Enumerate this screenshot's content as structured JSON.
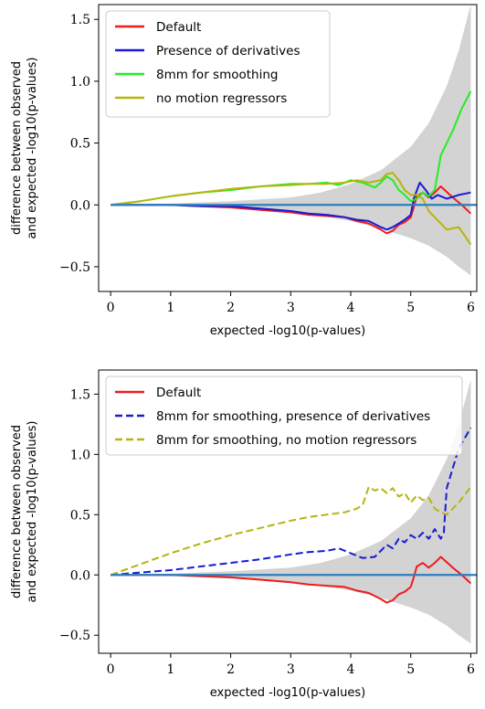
{
  "chart_data": [
    {
      "type": "line",
      "xlabel": "expected -log10(p-values)",
      "ylabel": [
        "difference between observed",
        "and expected -log10(p-values)"
      ],
      "xlim": [
        -0.2,
        6.1
      ],
      "ylim": [
        -0.7,
        1.62
      ],
      "xticks": [
        0,
        1,
        2,
        3,
        4,
        5,
        6
      ],
      "xtick_labels": [
        "0",
        "1",
        "2",
        "3",
        "4",
        "5",
        "6"
      ],
      "yticks": [
        -0.5,
        0.0,
        0.5,
        1.0,
        1.5
      ],
      "ytick_labels": [
        "−0.5",
        "0.0",
        "0.5",
        "1.0",
        "1.5"
      ],
      "grid": false,
      "legend_position": "top-left",
      "band": {
        "x": [
          0,
          1,
          2,
          3,
          3.5,
          4,
          4.5,
          5,
          5.3,
          5.6,
          5.8,
          6.0
        ],
        "upper": [
          0,
          0.01,
          0.03,
          0.06,
          0.1,
          0.17,
          0.28,
          0.47,
          0.66,
          0.96,
          1.25,
          1.62
        ],
        "lower": [
          0,
          -0.01,
          -0.03,
          -0.06,
          -0.09,
          -0.13,
          -0.19,
          -0.27,
          -0.33,
          -0.42,
          -0.5,
          -0.57
        ]
      },
      "reference_line": {
        "y": 0,
        "color": "#2e7ebc"
      },
      "series": [
        {
          "name": "Default",
          "color": "#ee1c1c",
          "style": "solid",
          "x": [
            0,
            0.5,
            1.0,
            1.5,
            2.0,
            2.5,
            3.0,
            3.3,
            3.6,
            3.9,
            4.1,
            4.3,
            4.5,
            4.6,
            4.7,
            4.8,
            4.9,
            5.0,
            5.05,
            5.1,
            5.2,
            5.3,
            5.4,
            5.5,
            5.7,
            5.85,
            6.0
          ],
          "y": [
            0,
            0.0,
            0.0,
            -0.01,
            -0.02,
            -0.04,
            -0.06,
            -0.08,
            -0.09,
            -0.1,
            -0.13,
            -0.15,
            -0.2,
            -0.23,
            -0.21,
            -0.16,
            -0.14,
            -0.1,
            -0.02,
            0.07,
            0.1,
            0.06,
            0.1,
            0.15,
            0.06,
            0.0,
            -0.07
          ]
        },
        {
          "name": "Presence of derivatives",
          "color": "#1a1ad6",
          "style": "solid",
          "x": [
            0,
            0.5,
            1.0,
            1.5,
            2.0,
            2.5,
            3.0,
            3.3,
            3.6,
            3.9,
            4.1,
            4.3,
            4.5,
            4.6,
            4.7,
            4.8,
            4.9,
            5.0,
            5.05,
            5.15,
            5.25,
            5.35,
            5.45,
            5.6,
            5.8,
            6.0
          ],
          "y": [
            0,
            0.0,
            0.0,
            -0.01,
            -0.01,
            -0.03,
            -0.05,
            -0.07,
            -0.08,
            -0.1,
            -0.12,
            -0.13,
            -0.18,
            -0.2,
            -0.18,
            -0.15,
            -0.12,
            -0.08,
            0.05,
            0.18,
            0.12,
            0.05,
            0.08,
            0.05,
            0.08,
            0.1
          ]
        },
        {
          "name": "8mm for smoothing",
          "color": "#22ee22",
          "style": "solid",
          "x": [
            0,
            0.5,
            1.0,
            1.5,
            2.0,
            2.5,
            3.0,
            3.3,
            3.6,
            3.8,
            4.0,
            4.2,
            4.4,
            4.5,
            4.6,
            4.7,
            4.8,
            4.9,
            5.0,
            5.1,
            5.2,
            5.3,
            5.4,
            5.5,
            5.7,
            5.85,
            6.0
          ],
          "y": [
            0,
            0.03,
            0.07,
            0.1,
            0.12,
            0.15,
            0.17,
            0.17,
            0.18,
            0.16,
            0.2,
            0.18,
            0.14,
            0.18,
            0.23,
            0.2,
            0.12,
            0.08,
            0.03,
            0.05,
            0.1,
            0.07,
            0.12,
            0.4,
            0.6,
            0.78,
            0.92
          ]
        },
        {
          "name": "no motion regressors",
          "color": "#b5b50f",
          "style": "solid",
          "x": [
            0,
            0.5,
            1.0,
            1.5,
            2.0,
            2.5,
            3.0,
            3.3,
            3.6,
            3.9,
            4.1,
            4.3,
            4.5,
            4.6,
            4.7,
            4.8,
            4.9,
            5.0,
            5.1,
            5.2,
            5.3,
            5.4,
            5.5,
            5.6,
            5.8,
            6.0
          ],
          "y": [
            0,
            0.03,
            0.07,
            0.1,
            0.13,
            0.15,
            0.16,
            0.17,
            0.17,
            0.18,
            0.2,
            0.18,
            0.2,
            0.25,
            0.26,
            0.2,
            0.12,
            0.08,
            0.08,
            0.05,
            -0.05,
            -0.1,
            -0.15,
            -0.2,
            -0.18,
            -0.32
          ]
        }
      ]
    },
    {
      "type": "line",
      "xlabel": "expected -log10(p-values)",
      "ylabel": [
        "difference between observed",
        "and expected -log10(p-values)"
      ],
      "xlim": [
        -0.2,
        6.1
      ],
      "ylim": [
        -0.65,
        1.7
      ],
      "xticks": [
        0,
        1,
        2,
        3,
        4,
        5,
        6
      ],
      "xtick_labels": [
        "0",
        "1",
        "2",
        "3",
        "4",
        "5",
        "6"
      ],
      "yticks": [
        -0.5,
        0.0,
        0.5,
        1.0,
        1.5
      ],
      "ytick_labels": [
        "−0.5",
        "0.0",
        "0.5",
        "1.0",
        "1.5"
      ],
      "grid": false,
      "legend_position": "top-left",
      "band": {
        "x": [
          0,
          1,
          2,
          3,
          3.5,
          4,
          4.5,
          5,
          5.3,
          5.6,
          5.8,
          6.0
        ],
        "upper": [
          0,
          0.01,
          0.03,
          0.06,
          0.1,
          0.17,
          0.28,
          0.47,
          0.66,
          0.96,
          1.25,
          1.62
        ],
        "lower": [
          0,
          -0.01,
          -0.03,
          -0.06,
          -0.09,
          -0.13,
          -0.19,
          -0.27,
          -0.33,
          -0.42,
          -0.5,
          -0.57
        ]
      },
      "reference_line": {
        "y": 0,
        "color": "#2e7ebc"
      },
      "series": [
        {
          "name": "Default",
          "color": "#ee1c1c",
          "style": "solid",
          "x": [
            0,
            0.5,
            1.0,
            1.5,
            2.0,
            2.5,
            3.0,
            3.3,
            3.6,
            3.9,
            4.1,
            4.3,
            4.5,
            4.6,
            4.7,
            4.8,
            4.9,
            5.0,
            5.05,
            5.1,
            5.2,
            5.3,
            5.4,
            5.5,
            5.7,
            5.85,
            6.0
          ],
          "y": [
            0,
            0.0,
            0.0,
            -0.01,
            -0.02,
            -0.04,
            -0.06,
            -0.08,
            -0.09,
            -0.1,
            -0.13,
            -0.15,
            -0.2,
            -0.23,
            -0.21,
            -0.16,
            -0.14,
            -0.1,
            -0.02,
            0.07,
            0.1,
            0.06,
            0.1,
            0.15,
            0.06,
            0.0,
            -0.07
          ]
        },
        {
          "name": "8mm for smoothing, presence of derivatives",
          "color": "#1a1ad6",
          "style": "dashed",
          "x": [
            0,
            0.5,
            1.0,
            1.5,
            2.0,
            2.5,
            3.0,
            3.3,
            3.6,
            3.8,
            4.0,
            4.2,
            4.4,
            4.5,
            4.6,
            4.7,
            4.8,
            4.9,
            5.0,
            5.1,
            5.2,
            5.3,
            5.4,
            5.5,
            5.55,
            5.6,
            5.8,
            6.0
          ],
          "y": [
            0,
            0.02,
            0.04,
            0.07,
            0.1,
            0.13,
            0.17,
            0.19,
            0.2,
            0.22,
            0.18,
            0.14,
            0.15,
            0.2,
            0.25,
            0.22,
            0.3,
            0.27,
            0.33,
            0.3,
            0.35,
            0.3,
            0.38,
            0.3,
            0.35,
            0.72,
            1.05,
            1.22
          ]
        },
        {
          "name": "8mm for smoothing, no motion regressors",
          "color": "#b5b50f",
          "style": "dashed",
          "x": [
            0,
            0.5,
            1.0,
            1.5,
            2.0,
            2.5,
            3.0,
            3.3,
            3.6,
            3.9,
            4.1,
            4.2,
            4.3,
            4.4,
            4.5,
            4.6,
            4.7,
            4.8,
            4.9,
            5.0,
            5.1,
            5.2,
            5.3,
            5.4,
            5.5,
            5.6,
            5.8,
            6.0
          ],
          "y": [
            0,
            0.09,
            0.18,
            0.26,
            0.33,
            0.39,
            0.45,
            0.48,
            0.5,
            0.52,
            0.55,
            0.58,
            0.73,
            0.7,
            0.72,
            0.68,
            0.72,
            0.65,
            0.68,
            0.6,
            0.66,
            0.62,
            0.64,
            0.55,
            0.52,
            0.5,
            0.6,
            0.73
          ]
        }
      ]
    }
  ]
}
